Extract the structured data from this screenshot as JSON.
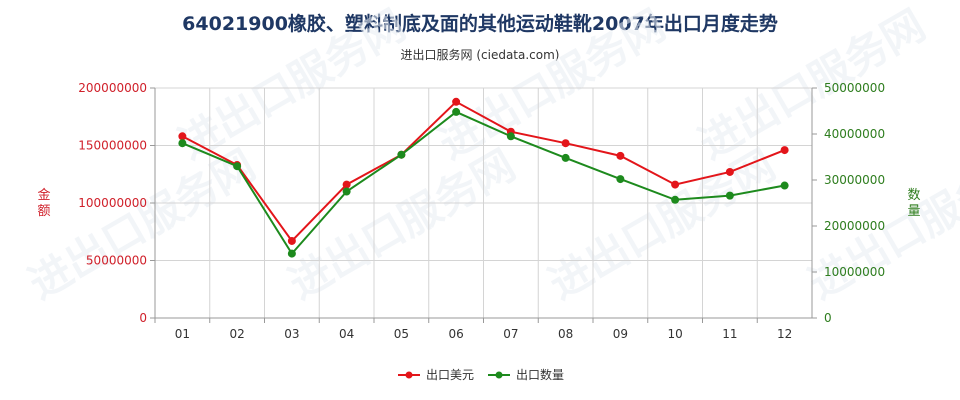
{
  "chart_data": {
    "type": "line",
    "title": "64021900橡胶、塑料制底及面的其他运动鞋靴2007年出口月度走势",
    "subtitle": "进出口服务网 (ciedata.com)",
    "categories": [
      "01",
      "02",
      "03",
      "04",
      "05",
      "06",
      "07",
      "08",
      "09",
      "10",
      "11",
      "12"
    ],
    "y_left": {
      "label": "金额",
      "min": 0,
      "max": 200000000,
      "ticks": [
        0,
        50000000,
        100000000,
        150000000,
        200000000
      ],
      "tick_labels": [
        "0",
        "50000000",
        "100000000",
        "150000000",
        "200000000"
      ],
      "color": "#d0202a"
    },
    "y_right": {
      "label": "数量",
      "min": 0,
      "max": 50000000,
      "ticks": [
        0,
        10000000,
        20000000,
        30000000,
        40000000,
        50000000
      ],
      "tick_labels": [
        "0",
        "10000000",
        "20000000",
        "30000000",
        "40000000",
        "50000000"
      ],
      "color": "#2e7d1e"
    },
    "series": [
      {
        "name": "出口美元",
        "axis": "left",
        "color": "#e3151a",
        "values": [
          158000000,
          133000000,
          67000000,
          116000000,
          142000000,
          188000000,
          162000000,
          152000000,
          141000000,
          116000000,
          127000000,
          146000000
        ]
      },
      {
        "name": "出口数量",
        "axis": "right",
        "color": "#1d8a1d",
        "values": [
          38000000,
          33000000,
          14000000,
          27500000,
          35500000,
          44800000,
          39500000,
          34800000,
          30200000,
          25700000,
          26600000,
          28800000
        ]
      }
    ],
    "grid": true,
    "legend_position": "bottom-center"
  },
  "watermark": "进出口服务网"
}
